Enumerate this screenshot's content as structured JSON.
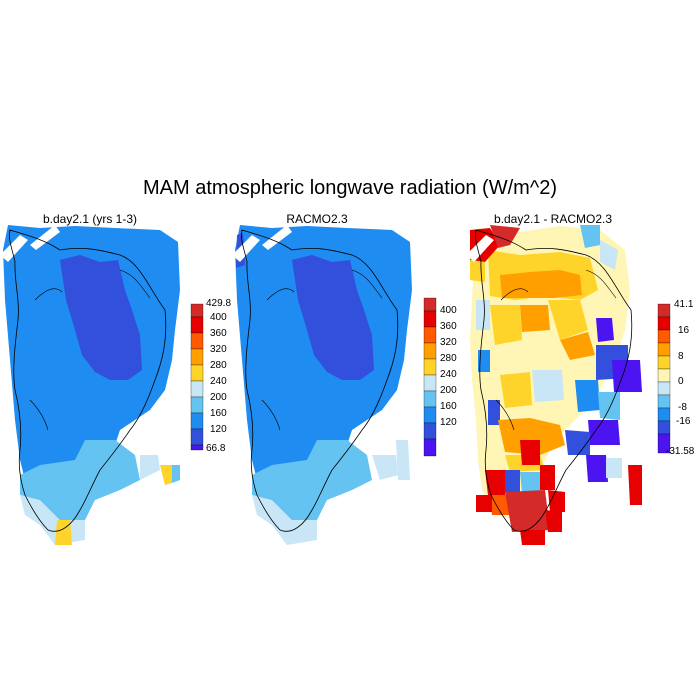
{
  "title": "MAM atmospheric longwave radiation (W/m^2)",
  "panels": [
    {
      "title": "b.day2.1 (yrs 1-3)",
      "colorbar": {
        "labels": [
          "429.8",
          "400",
          "360",
          "320",
          "280",
          "240",
          "200",
          "160",
          "120",
          "66.8"
        ],
        "colors": [
          "#d42a2a",
          "#e60000",
          "#ff5a00",
          "#ffa000",
          "#ffd42a",
          "#c8e6f5",
          "#64c3f0",
          "#1e8cf0",
          "#3250dc",
          "#4b14f0"
        ]
      }
    },
    {
      "title": "RACMO2.3",
      "colorbar": {
        "labels": [
          "400",
          "360",
          "320",
          "280",
          "240",
          "200",
          "160",
          "120"
        ],
        "colors": [
          "#d42a2a",
          "#e60000",
          "#ff5a00",
          "#ffa000",
          "#ffd42a",
          "#c8e6f5",
          "#64c3f0",
          "#1e8cf0",
          "#3250dc",
          "#4b14f0"
        ]
      }
    },
    {
      "title": "b.day2.1 - RACMO2.3",
      "colorbar": {
        "labels": [
          "41.1",
          "16",
          "8",
          "0",
          "-8",
          "-16",
          "-31.58"
        ],
        "colors": [
          "#d42a2a",
          "#e60000",
          "#ff5a00",
          "#ffa000",
          "#ffd42a",
          "#fff5b4",
          "#c8e6f5",
          "#64c3f0",
          "#1e8cf0",
          "#3250dc",
          "#4b14f0"
        ]
      }
    }
  ]
}
